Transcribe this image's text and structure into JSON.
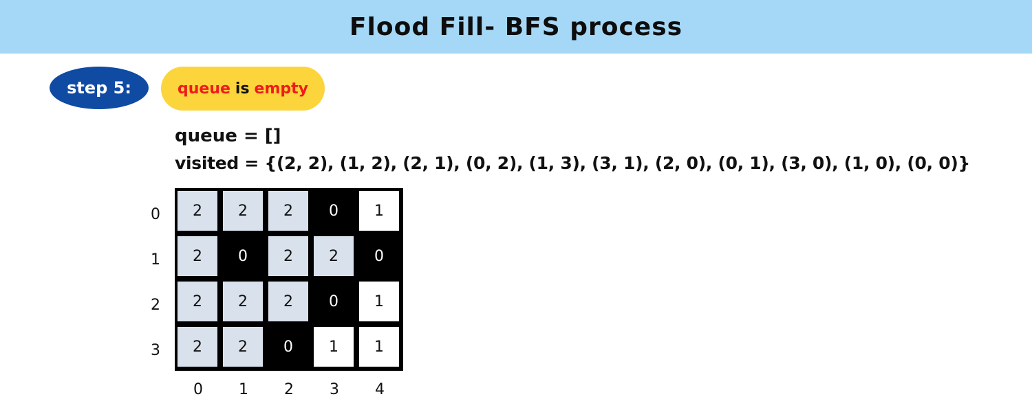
{
  "header": {
    "title": "Flood Fill- BFS process"
  },
  "step": {
    "label": "step 5:"
  },
  "note": {
    "word1": "queue",
    "word2": "is",
    "word3": "empty"
  },
  "queue_line": "queue = []",
  "visited_line": "visited = {(2, 2), (1, 2), (2, 1), (0, 2), (1, 3), (3, 1), (2, 0), (0, 1), (3, 0), (1, 0), (0, 0)}",
  "grid": {
    "rows": [
      [
        "2",
        "2",
        "2",
        "0",
        "1"
      ],
      [
        "2",
        "0",
        "2",
        "2",
        "0"
      ],
      [
        "2",
        "2",
        "2",
        "0",
        "1"
      ],
      [
        "2",
        "2",
        "0",
        "1",
        "1"
      ]
    ],
    "row_labels": [
      "0",
      "1",
      "2",
      "3"
    ],
    "col_labels": [
      "0",
      "1",
      "2",
      "3",
      "4"
    ]
  },
  "colors": {
    "header_bg": "#a5d8f7",
    "step_bg": "#0f4aa3",
    "note_bg": "#fcd43c",
    "note_red": "#ee1c1c",
    "filled_cell": "#d9e1ec",
    "one_cell": "#ffffff",
    "zero_cell": "#000000"
  }
}
